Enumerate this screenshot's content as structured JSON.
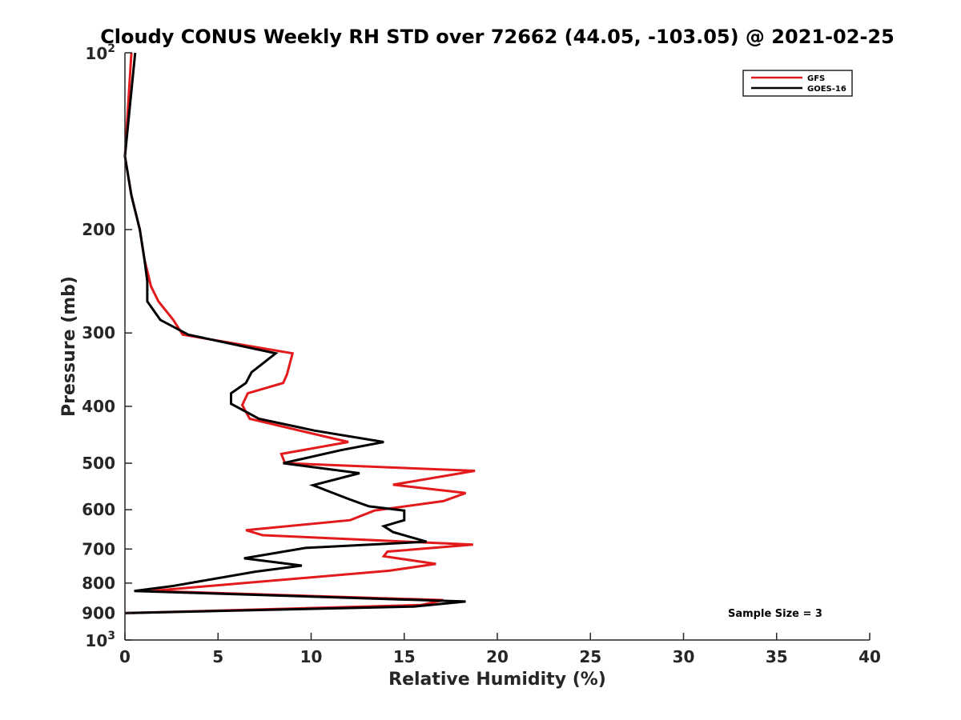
{
  "chart_data": {
    "type": "line",
    "title": "Cloudy CONUS Weekly RH STD over 72662 (44.05, -103.05) @ 2021-02-25",
    "xlabel": "Relative Humidity (%)",
    "ylabel": "Pressure (mb)",
    "xlim": [
      0,
      40
    ],
    "ylim": [
      100,
      1000
    ],
    "y_scale": "log",
    "y_reversed": true,
    "grid": false,
    "legend_position": "top-right",
    "x_ticks": [
      0,
      5,
      10,
      15,
      20,
      25,
      30,
      35,
      40
    ],
    "x_tick_labels": [
      "0",
      "5",
      "10",
      "15",
      "20",
      "25",
      "30",
      "35",
      "40"
    ],
    "y_ticks": [
      200,
      300,
      400,
      500,
      600,
      700,
      800,
      900
    ],
    "y_tick_labels": [
      "200",
      "300",
      "400",
      "500",
      "600",
      "700",
      "800",
      "900"
    ],
    "y_decade_labels": [
      {
        "base": "10",
        "exponent": "2",
        "value": 100
      },
      {
        "base": "10",
        "exponent": "3",
        "value": 1000
      }
    ],
    "series": [
      {
        "name": "GFS",
        "color": "#e31a1c",
        "points": [
          [
            0.35,
            100
          ],
          [
            0.0,
            150
          ],
          [
            0.35,
            175
          ],
          [
            0.8,
            200
          ],
          [
            1.05,
            225
          ],
          [
            1.4,
            250
          ],
          [
            1.8,
            265
          ],
          [
            2.6,
            285
          ],
          [
            3.1,
            302
          ],
          [
            9.0,
            325
          ],
          [
            8.7,
            353
          ],
          [
            8.5,
            365
          ],
          [
            6.6,
            380
          ],
          [
            6.3,
            398
          ],
          [
            6.7,
            420
          ],
          [
            12.0,
            460
          ],
          [
            8.4,
            482
          ],
          [
            8.6,
            500
          ],
          [
            18.8,
            515
          ],
          [
            14.4,
            544
          ],
          [
            18.3,
            562
          ],
          [
            17.1,
            580
          ],
          [
            13.4,
            602
          ],
          [
            12.1,
            625
          ],
          [
            6.5,
            650
          ],
          [
            7.4,
            663
          ],
          [
            18.7,
            688
          ],
          [
            14.1,
            707
          ],
          [
            13.9,
            720
          ],
          [
            16.7,
            742
          ],
          [
            14.2,
            762
          ],
          [
            1.4,
            825
          ],
          [
            17.1,
            855
          ],
          [
            15.9,
            872
          ],
          [
            0.0,
            900
          ]
        ]
      },
      {
        "name": "GOES-16",
        "color": "#000000",
        "points": [
          [
            0.55,
            100
          ],
          [
            0.0,
            150
          ],
          [
            0.35,
            175
          ],
          [
            0.8,
            200
          ],
          [
            1.05,
            225
          ],
          [
            1.2,
            245
          ],
          [
            1.2,
            265
          ],
          [
            1.9,
            285
          ],
          [
            3.4,
            302
          ],
          [
            8.1,
            325
          ],
          [
            6.8,
            350
          ],
          [
            6.5,
            365
          ],
          [
            5.7,
            380
          ],
          [
            5.7,
            396
          ],
          [
            7.2,
            420
          ],
          [
            10.2,
            440
          ],
          [
            13.9,
            460
          ],
          [
            11.6,
            475
          ],
          [
            8.5,
            500
          ],
          [
            12.6,
            520
          ],
          [
            10.1,
            545
          ],
          [
            12.0,
            575
          ],
          [
            13.1,
            592
          ],
          [
            15.0,
            602
          ],
          [
            15.0,
            625
          ],
          [
            13.9,
            640
          ],
          [
            14.4,
            655
          ],
          [
            16.2,
            680
          ],
          [
            9.7,
            697
          ],
          [
            6.4,
            726
          ],
          [
            9.5,
            747
          ],
          [
            7.0,
            765
          ],
          [
            2.5,
            810
          ],
          [
            0.5,
            825
          ],
          [
            18.3,
            860
          ],
          [
            15.5,
            877
          ],
          [
            0.0,
            900
          ]
        ]
      }
    ],
    "annotation": "Sample Size = 3"
  }
}
